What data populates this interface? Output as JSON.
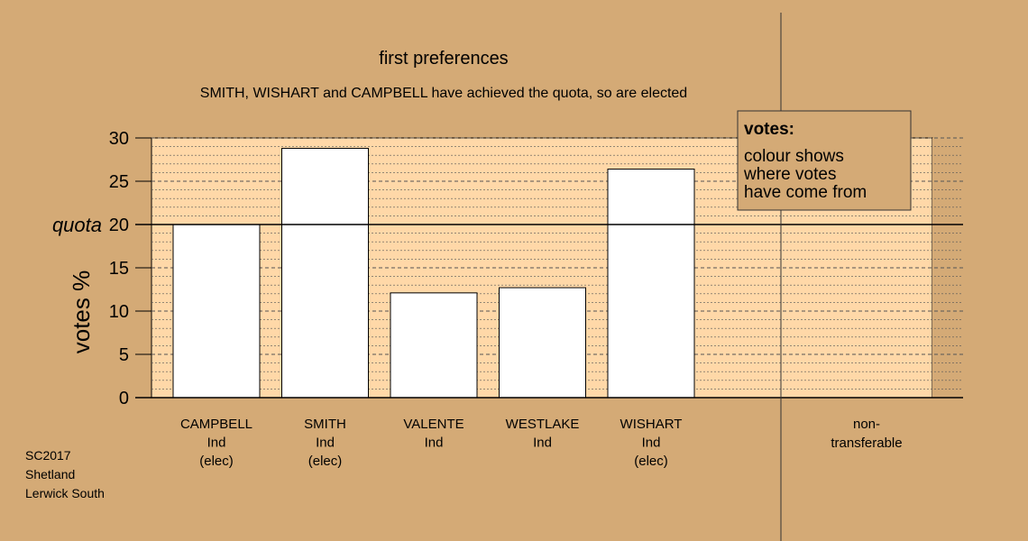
{
  "chart_data": {
    "type": "bar",
    "title": "first preferences",
    "subtitle": "SMITH, WISHART and CAMPBELL have achieved the quota, so are elected",
    "ylabel": "votes %",
    "ylim": [
      0,
      30
    ],
    "yticks": [
      0,
      5,
      10,
      15,
      20,
      25,
      30
    ],
    "quota": {
      "value": 20,
      "label": "quota"
    },
    "categories": [
      {
        "name": "CAMPBELL",
        "party": "Ind",
        "status": "(elec)",
        "value": 20.0
      },
      {
        "name": "SMITH",
        "party": "Ind",
        "status": "(elec)",
        "value": 28.8
      },
      {
        "name": "VALENTE",
        "party": "Ind",
        "status": "",
        "value": 12.1
      },
      {
        "name": "WESTLAKE",
        "party": "Ind",
        "status": "",
        "value": 12.7
      },
      {
        "name": "WISHART",
        "party": "Ind",
        "status": "(elec)",
        "value": 26.4
      }
    ],
    "non_transferable": {
      "line1": "non-",
      "line2": "transferable",
      "value": 0
    },
    "legend": {
      "title": "votes:",
      "lines": [
        "colour shows",
        "where votes",
        "have come from"
      ],
      "placement": "top-right"
    },
    "colors": {
      "background": "#d4aa76",
      "plot_fill": "#ffd8a8",
      "bar_fill": "#ffffff",
      "legend_fill": "#d4aa76"
    }
  },
  "footer": {
    "line1": "SC2017",
    "line2": "Shetland",
    "line3": "Lerwick South"
  }
}
